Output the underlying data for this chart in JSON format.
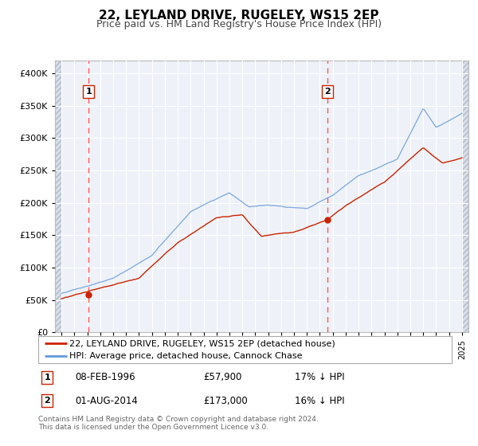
{
  "title": "22, LEYLAND DRIVE, RUGELEY, WS15 2EP",
  "subtitle": "Price paid vs. HM Land Registry's House Price Index (HPI)",
  "ylim": [
    0,
    420000
  ],
  "yticks": [
    0,
    50000,
    100000,
    150000,
    200000,
    250000,
    300000,
    350000,
    400000
  ],
  "xlim_start": 1993.5,
  "xlim_end": 2025.5,
  "bg_color": "#eef2f8",
  "grid_color": "#ffffff",
  "sale1_x": 1996.1,
  "sale1_y": 57900,
  "sale2_x": 2014.58,
  "sale2_y": 173000,
  "vline_color": "#ff5555",
  "dot_color": "#cc2200",
  "legend_line1": "22, LEYLAND DRIVE, RUGELEY, WS15 2EP (detached house)",
  "legend_line2": "HPI: Average price, detached house, Cannock Chase",
  "annotation1_date": "08-FEB-1996",
  "annotation1_price": "£57,900",
  "annotation1_hpi": "17% ↓ HPI",
  "annotation2_date": "01-AUG-2014",
  "annotation2_price": "£173,000",
  "annotation2_hpi": "16% ↓ HPI",
  "footer": "Contains HM Land Registry data © Crown copyright and database right 2024.\nThis data is licensed under the Open Government Licence v3.0.",
  "red_line_color": "#cc2200",
  "blue_line_color": "#6699dd",
  "title_fontsize": 11,
  "subtitle_fontsize": 9
}
